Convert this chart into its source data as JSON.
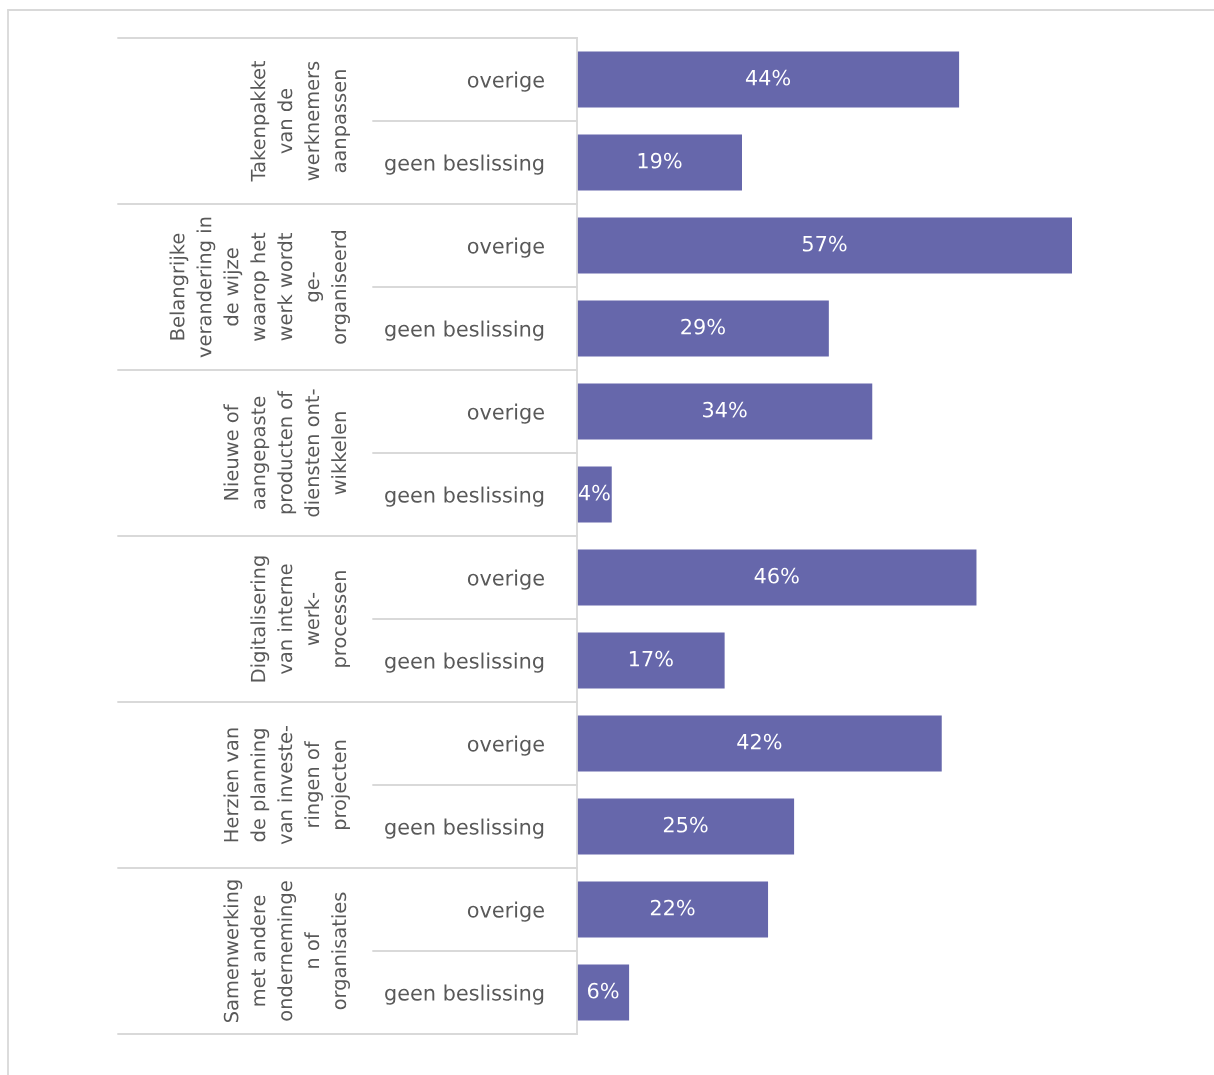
{
  "chart_data": {
    "type": "bar",
    "orientation": "horizontal",
    "categories": [
      "overige",
      "geen beslissing",
      "overige",
      "geen beslissing",
      "overige",
      "geen beslissing",
      "overige",
      "geen beslissing",
      "overige",
      "geen beslissing",
      "overige",
      "geen beslissing"
    ],
    "values": [
      44,
      19,
      57,
      29,
      34,
      4,
      46,
      17,
      42,
      25,
      22,
      6
    ],
    "value_labels": [
      "44%",
      "19%",
      "57%",
      "29%",
      "34%",
      "4%",
      "46%",
      "17%",
      "42%",
      "25%",
      "22%",
      "6%"
    ],
    "color": "#6667ab",
    "annotations": [
      "Takenpakket\nvan de\nwerknemers\naanpassen",
      "Belangrijke\nverandering in\nde wijze\nwaarop het\nwerk wordt\nge-\norganiseerd",
      "Nieuwe of\naangepaste\nproducten of\ndiensten ont-\nwikkelen",
      "Digitalisering\nvan interne\nwerk-\nprocessen",
      "Herzien van\nde planning\nvan investe-\nringen of\nprojecten",
      "Samenwerking\nmet andere\nonderneminge\nn of\norganisaties"
    ],
    "tick_labels": "y"
  }
}
